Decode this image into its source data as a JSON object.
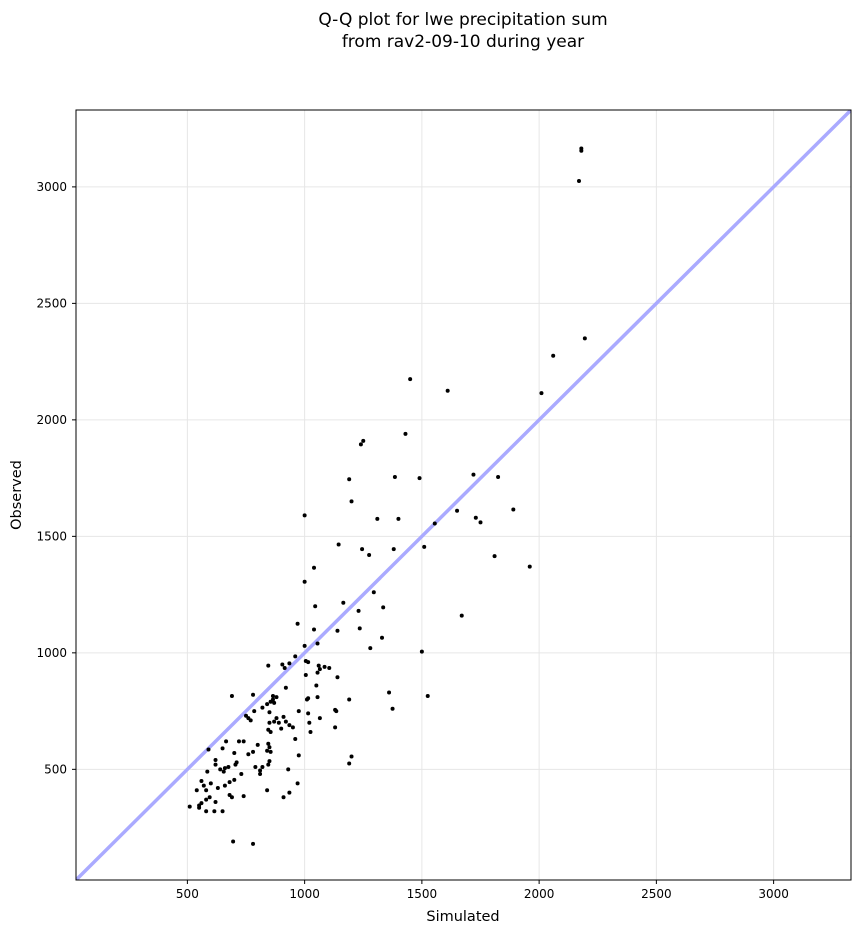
{
  "chart_data": {
    "type": "scatter",
    "title_line1": "Q-Q plot for lwe precipitation sum",
    "title_line2": "from rav2-09-10 during year",
    "xlabel": "Simulated",
    "ylabel": "Observed",
    "xlim": [
      25,
      3330
    ],
    "ylim": [
      25,
      3330
    ],
    "xticks": [
      500,
      1000,
      1500,
      2000,
      2500,
      3000
    ],
    "yticks": [
      500,
      1000,
      1500,
      2000,
      2500,
      3000
    ],
    "xtick_labels": [
      "500",
      "1000",
      "1500",
      "2000",
      "2500",
      "3000"
    ],
    "ytick_labels": [
      "500",
      "1000",
      "1500",
      "2000",
      "2500",
      "3000"
    ],
    "grid": true,
    "reference_line": {
      "from": [
        25,
        25
      ],
      "to": [
        3330,
        3330
      ],
      "color": "#aaaaff"
    },
    "point_color": "#000000",
    "points": [
      [
        2180,
        3165
      ],
      [
        2180,
        3155
      ],
      [
        2170,
        3025
      ],
      [
        2195,
        2350
      ],
      [
        2060,
        2275
      ],
      [
        2010,
        2115
      ],
      [
        1610,
        2125
      ],
      [
        1450,
        2175
      ],
      [
        1430,
        1940
      ],
      [
        1250,
        1910
      ],
      [
        1240,
        1895
      ],
      [
        1190,
        1745
      ],
      [
        1200,
        1650
      ],
      [
        1490,
        1750
      ],
      [
        1385,
        1755
      ],
      [
        1720,
        1765
      ],
      [
        1825,
        1755
      ],
      [
        1890,
        1615
      ],
      [
        1650,
        1610
      ],
      [
        1750,
        1560
      ],
      [
        1730,
        1580
      ],
      [
        1555,
        1555
      ],
      [
        1400,
        1575
      ],
      [
        1310,
        1575
      ],
      [
        1000,
        1590
      ],
      [
        1145,
        1465
      ],
      [
        1380,
        1445
      ],
      [
        1510,
        1455
      ],
      [
        1245,
        1445
      ],
      [
        1275,
        1420
      ],
      [
        1810,
        1415
      ],
      [
        1960,
        1370
      ],
      [
        1040,
        1365
      ],
      [
        1000,
        1305
      ],
      [
        1295,
        1260
      ],
      [
        1165,
        1215
      ],
      [
        1045,
        1200
      ],
      [
        1335,
        1195
      ],
      [
        1230,
        1180
      ],
      [
        1670,
        1160
      ],
      [
        1000,
        1030
      ],
      [
        970,
        1125
      ],
      [
        1040,
        1100
      ],
      [
        1140,
        1095
      ],
      [
        1235,
        1105
      ],
      [
        1330,
        1065
      ],
      [
        1280,
        1020
      ],
      [
        1055,
        1040
      ],
      [
        1500,
        1005
      ],
      [
        960,
        985
      ],
      [
        1005,
        965
      ],
      [
        1015,
        960
      ],
      [
        1060,
        945
      ],
      [
        1065,
        930
      ],
      [
        1085,
        940
      ],
      [
        1105,
        935
      ],
      [
        935,
        955
      ],
      [
        905,
        950
      ],
      [
        845,
        945
      ],
      [
        915,
        935
      ],
      [
        1055,
        915
      ],
      [
        1005,
        905
      ],
      [
        1140,
        895
      ],
      [
        920,
        850
      ],
      [
        1050,
        860
      ],
      [
        1360,
        830
      ],
      [
        1525,
        815
      ],
      [
        1010,
        800
      ],
      [
        1055,
        810
      ],
      [
        1015,
        805
      ],
      [
        1190,
        800
      ],
      [
        865,
        815
      ],
      [
        865,
        800
      ],
      [
        880,
        810
      ],
      [
        870,
        785
      ],
      [
        855,
        790
      ],
      [
        780,
        820
      ],
      [
        690,
        815
      ],
      [
        840,
        780
      ],
      [
        820,
        765
      ],
      [
        785,
        750
      ],
      [
        850,
        745
      ],
      [
        1375,
        760
      ],
      [
        1130,
        755
      ],
      [
        1135,
        750
      ],
      [
        975,
        750
      ],
      [
        1015,
        740
      ],
      [
        1065,
        720
      ],
      [
        910,
        725
      ],
      [
        880,
        720
      ],
      [
        870,
        705
      ],
      [
        890,
        700
      ],
      [
        920,
        705
      ],
      [
        850,
        700
      ],
      [
        760,
        720
      ],
      [
        750,
        730
      ],
      [
        770,
        710
      ],
      [
        1020,
        700
      ],
      [
        1025,
        660
      ],
      [
        1130,
        680
      ],
      [
        900,
        675
      ],
      [
        935,
        690
      ],
      [
        950,
        680
      ],
      [
        845,
        670
      ],
      [
        855,
        660
      ],
      [
        960,
        630
      ],
      [
        720,
        620
      ],
      [
        665,
        620
      ],
      [
        740,
        620
      ],
      [
        800,
        605
      ],
      [
        845,
        610
      ],
      [
        850,
        595
      ],
      [
        840,
        580
      ],
      [
        855,
        575
      ],
      [
        590,
        585
      ],
      [
        650,
        590
      ],
      [
        700,
        570
      ],
      [
        760,
        565
      ],
      [
        780,
        575
      ],
      [
        975,
        560
      ],
      [
        1200,
        555
      ],
      [
        1190,
        525
      ],
      [
        850,
        535
      ],
      [
        845,
        520
      ],
      [
        820,
        510
      ],
      [
        710,
        530
      ],
      [
        705,
        520
      ],
      [
        675,
        510
      ],
      [
        660,
        505
      ],
      [
        620,
        540
      ],
      [
        620,
        520
      ],
      [
        585,
        490
      ],
      [
        640,
        500
      ],
      [
        655,
        490
      ],
      [
        790,
        510
      ],
      [
        810,
        495
      ],
      [
        930,
        500
      ],
      [
        730,
        480
      ],
      [
        810,
        480
      ],
      [
        700,
        455
      ],
      [
        680,
        445
      ],
      [
        660,
        430
      ],
      [
        560,
        450
      ],
      [
        600,
        440
      ],
      [
        570,
        430
      ],
      [
        540,
        410
      ],
      [
        580,
        410
      ],
      [
        630,
        420
      ],
      [
        970,
        440
      ],
      [
        740,
        385
      ],
      [
        840,
        410
      ],
      [
        935,
        400
      ],
      [
        595,
        380
      ],
      [
        580,
        370
      ],
      [
        690,
        380
      ],
      [
        680,
        390
      ],
      [
        620,
        360
      ],
      [
        560,
        355
      ],
      [
        550,
        345
      ],
      [
        550,
        335
      ],
      [
        510,
        340
      ],
      [
        580,
        320
      ],
      [
        615,
        320
      ],
      [
        650,
        320
      ],
      [
        910,
        380
      ],
      [
        695,
        190
      ],
      [
        780,
        180
      ]
    ]
  }
}
